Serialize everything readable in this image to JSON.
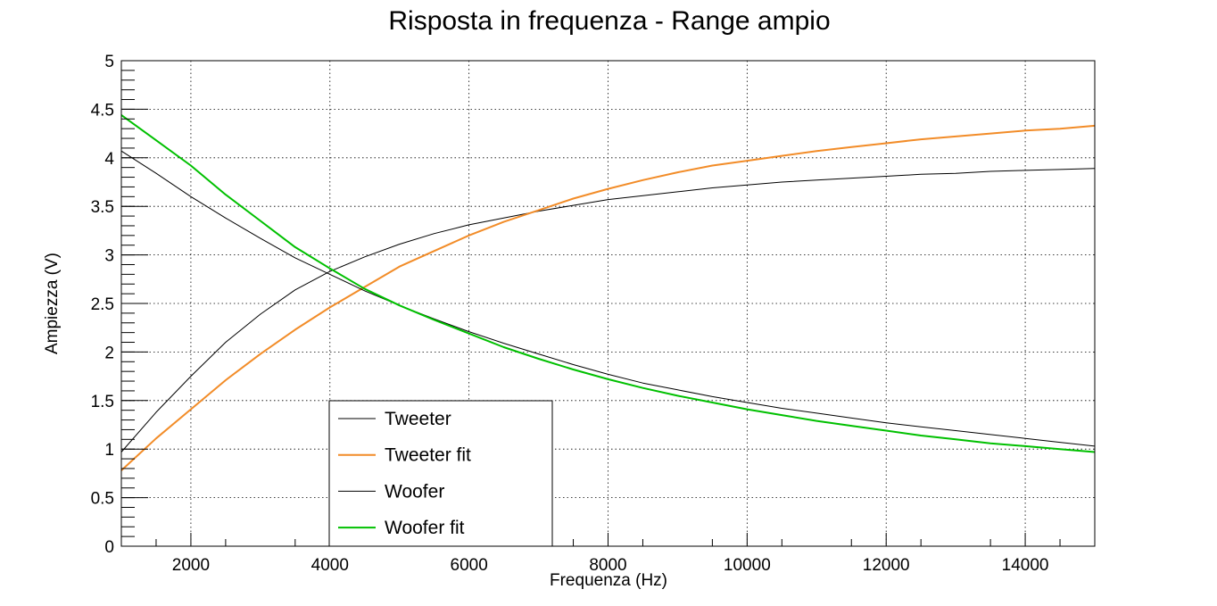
{
  "chart_data": {
    "type": "line",
    "title": "Risposta in frequenza - Range ampio",
    "xlabel": "Frequenza (Hz)",
    "ylabel": "Ampiezza (V)",
    "xlim": [
      1000,
      15000
    ],
    "ylim": [
      0,
      5
    ],
    "grid": true,
    "legend_position": "bottom-center",
    "x_ticks": [
      2000,
      4000,
      6000,
      8000,
      10000,
      12000,
      14000
    ],
    "y_ticks": [
      0,
      0.5,
      1,
      1.5,
      2,
      2.5,
      3,
      3.5,
      4,
      4.5,
      5
    ],
    "x_tick_labels": [
      "2000",
      "4000",
      "6000",
      "8000",
      "10000",
      "12000",
      "14000"
    ],
    "y_tick_labels": [
      "0",
      "0.5",
      "1",
      "1.5",
      "2",
      "2.5",
      "3",
      "3.5",
      "4",
      "4.5",
      "5"
    ],
    "series": [
      {
        "name": "Tweeter",
        "color": "#000000",
        "x": [
          1000,
          1500,
          2000,
          2500,
          3000,
          3500,
          4000,
          4500,
          5000,
          5500,
          6000,
          6500,
          7000,
          7500,
          8000,
          8500,
          9000,
          9500,
          10000,
          10500,
          11000,
          11500,
          12000,
          12500,
          13000,
          13500,
          14000,
          14500,
          15000
        ],
        "y": [
          0.97,
          1.38,
          1.75,
          2.1,
          2.39,
          2.64,
          2.83,
          2.98,
          3.11,
          3.22,
          3.31,
          3.38,
          3.45,
          3.51,
          3.57,
          3.61,
          3.65,
          3.69,
          3.72,
          3.75,
          3.77,
          3.79,
          3.81,
          3.83,
          3.84,
          3.86,
          3.87,
          3.88,
          3.89
        ]
      },
      {
        "name": "Tweeter fit",
        "color": "#f28c28",
        "x": [
          1000,
          1500,
          2000,
          2500,
          3000,
          3500,
          4000,
          4500,
          5000,
          5500,
          6000,
          6500,
          7000,
          7500,
          8000,
          8500,
          9000,
          9500,
          10000,
          10500,
          11000,
          11500,
          12000,
          12500,
          13000,
          13500,
          14000,
          14500,
          15000
        ],
        "y": [
          0.78,
          1.11,
          1.41,
          1.71,
          1.98,
          2.23,
          2.46,
          2.67,
          2.88,
          3.04,
          3.2,
          3.34,
          3.46,
          3.58,
          3.68,
          3.77,
          3.85,
          3.92,
          3.97,
          4.02,
          4.07,
          4.11,
          4.15,
          4.19,
          4.22,
          4.25,
          4.28,
          4.3,
          4.33
        ]
      },
      {
        "name": "Woofer",
        "color": "#000000",
        "x": [
          1000,
          1500,
          2000,
          2500,
          3000,
          3500,
          4000,
          4500,
          5000,
          5500,
          6000,
          6500,
          7000,
          7500,
          8000,
          8500,
          9000,
          9500,
          10000,
          10500,
          11000,
          11500,
          12000,
          12500,
          13000,
          13500,
          14000,
          14500,
          15000
        ],
        "y": [
          4.07,
          3.84,
          3.6,
          3.38,
          3.17,
          2.97,
          2.8,
          2.63,
          2.48,
          2.34,
          2.21,
          2.09,
          1.98,
          1.87,
          1.77,
          1.68,
          1.61,
          1.54,
          1.48,
          1.42,
          1.37,
          1.32,
          1.27,
          1.23,
          1.19,
          1.15,
          1.11,
          1.07,
          1.03
        ]
      },
      {
        "name": "Woofer fit",
        "color": "#00c000",
        "x": [
          1000,
          1500,
          2000,
          2500,
          3000,
          3500,
          4000,
          4500,
          5000,
          5500,
          6000,
          6500,
          7000,
          7500,
          8000,
          8500,
          9000,
          9500,
          10000,
          10500,
          11000,
          11500,
          12000,
          12500,
          13000,
          13500,
          14000,
          14500,
          15000
        ],
        "y": [
          4.44,
          4.18,
          3.92,
          3.62,
          3.35,
          3.08,
          2.86,
          2.65,
          2.48,
          2.33,
          2.19,
          2.05,
          1.93,
          1.82,
          1.72,
          1.63,
          1.55,
          1.48,
          1.41,
          1.35,
          1.29,
          1.24,
          1.19,
          1.14,
          1.1,
          1.06,
          1.03,
          1.0,
          0.97
        ]
      }
    ]
  }
}
